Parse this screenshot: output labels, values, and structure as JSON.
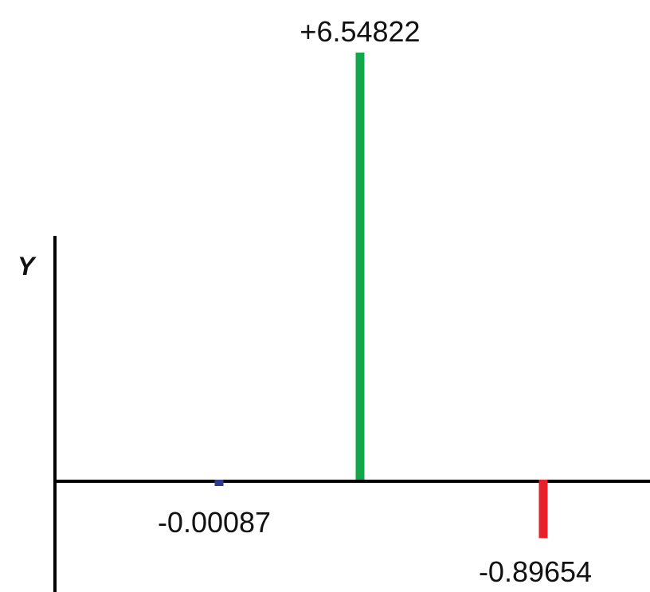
{
  "chart_data": {
    "type": "bar",
    "title": "",
    "xlabel": "",
    "ylabel": "Y",
    "x": [
      1,
      2,
      3
    ],
    "values": [
      -0.00087,
      6.54822,
      -0.89654
    ],
    "labels": [
      "-0.00087",
      "+6.54822",
      "-0.89654"
    ],
    "colors": [
      "#2e3a8c",
      "#12a84a",
      "#e8202a"
    ],
    "grid": false,
    "legend": "none"
  }
}
